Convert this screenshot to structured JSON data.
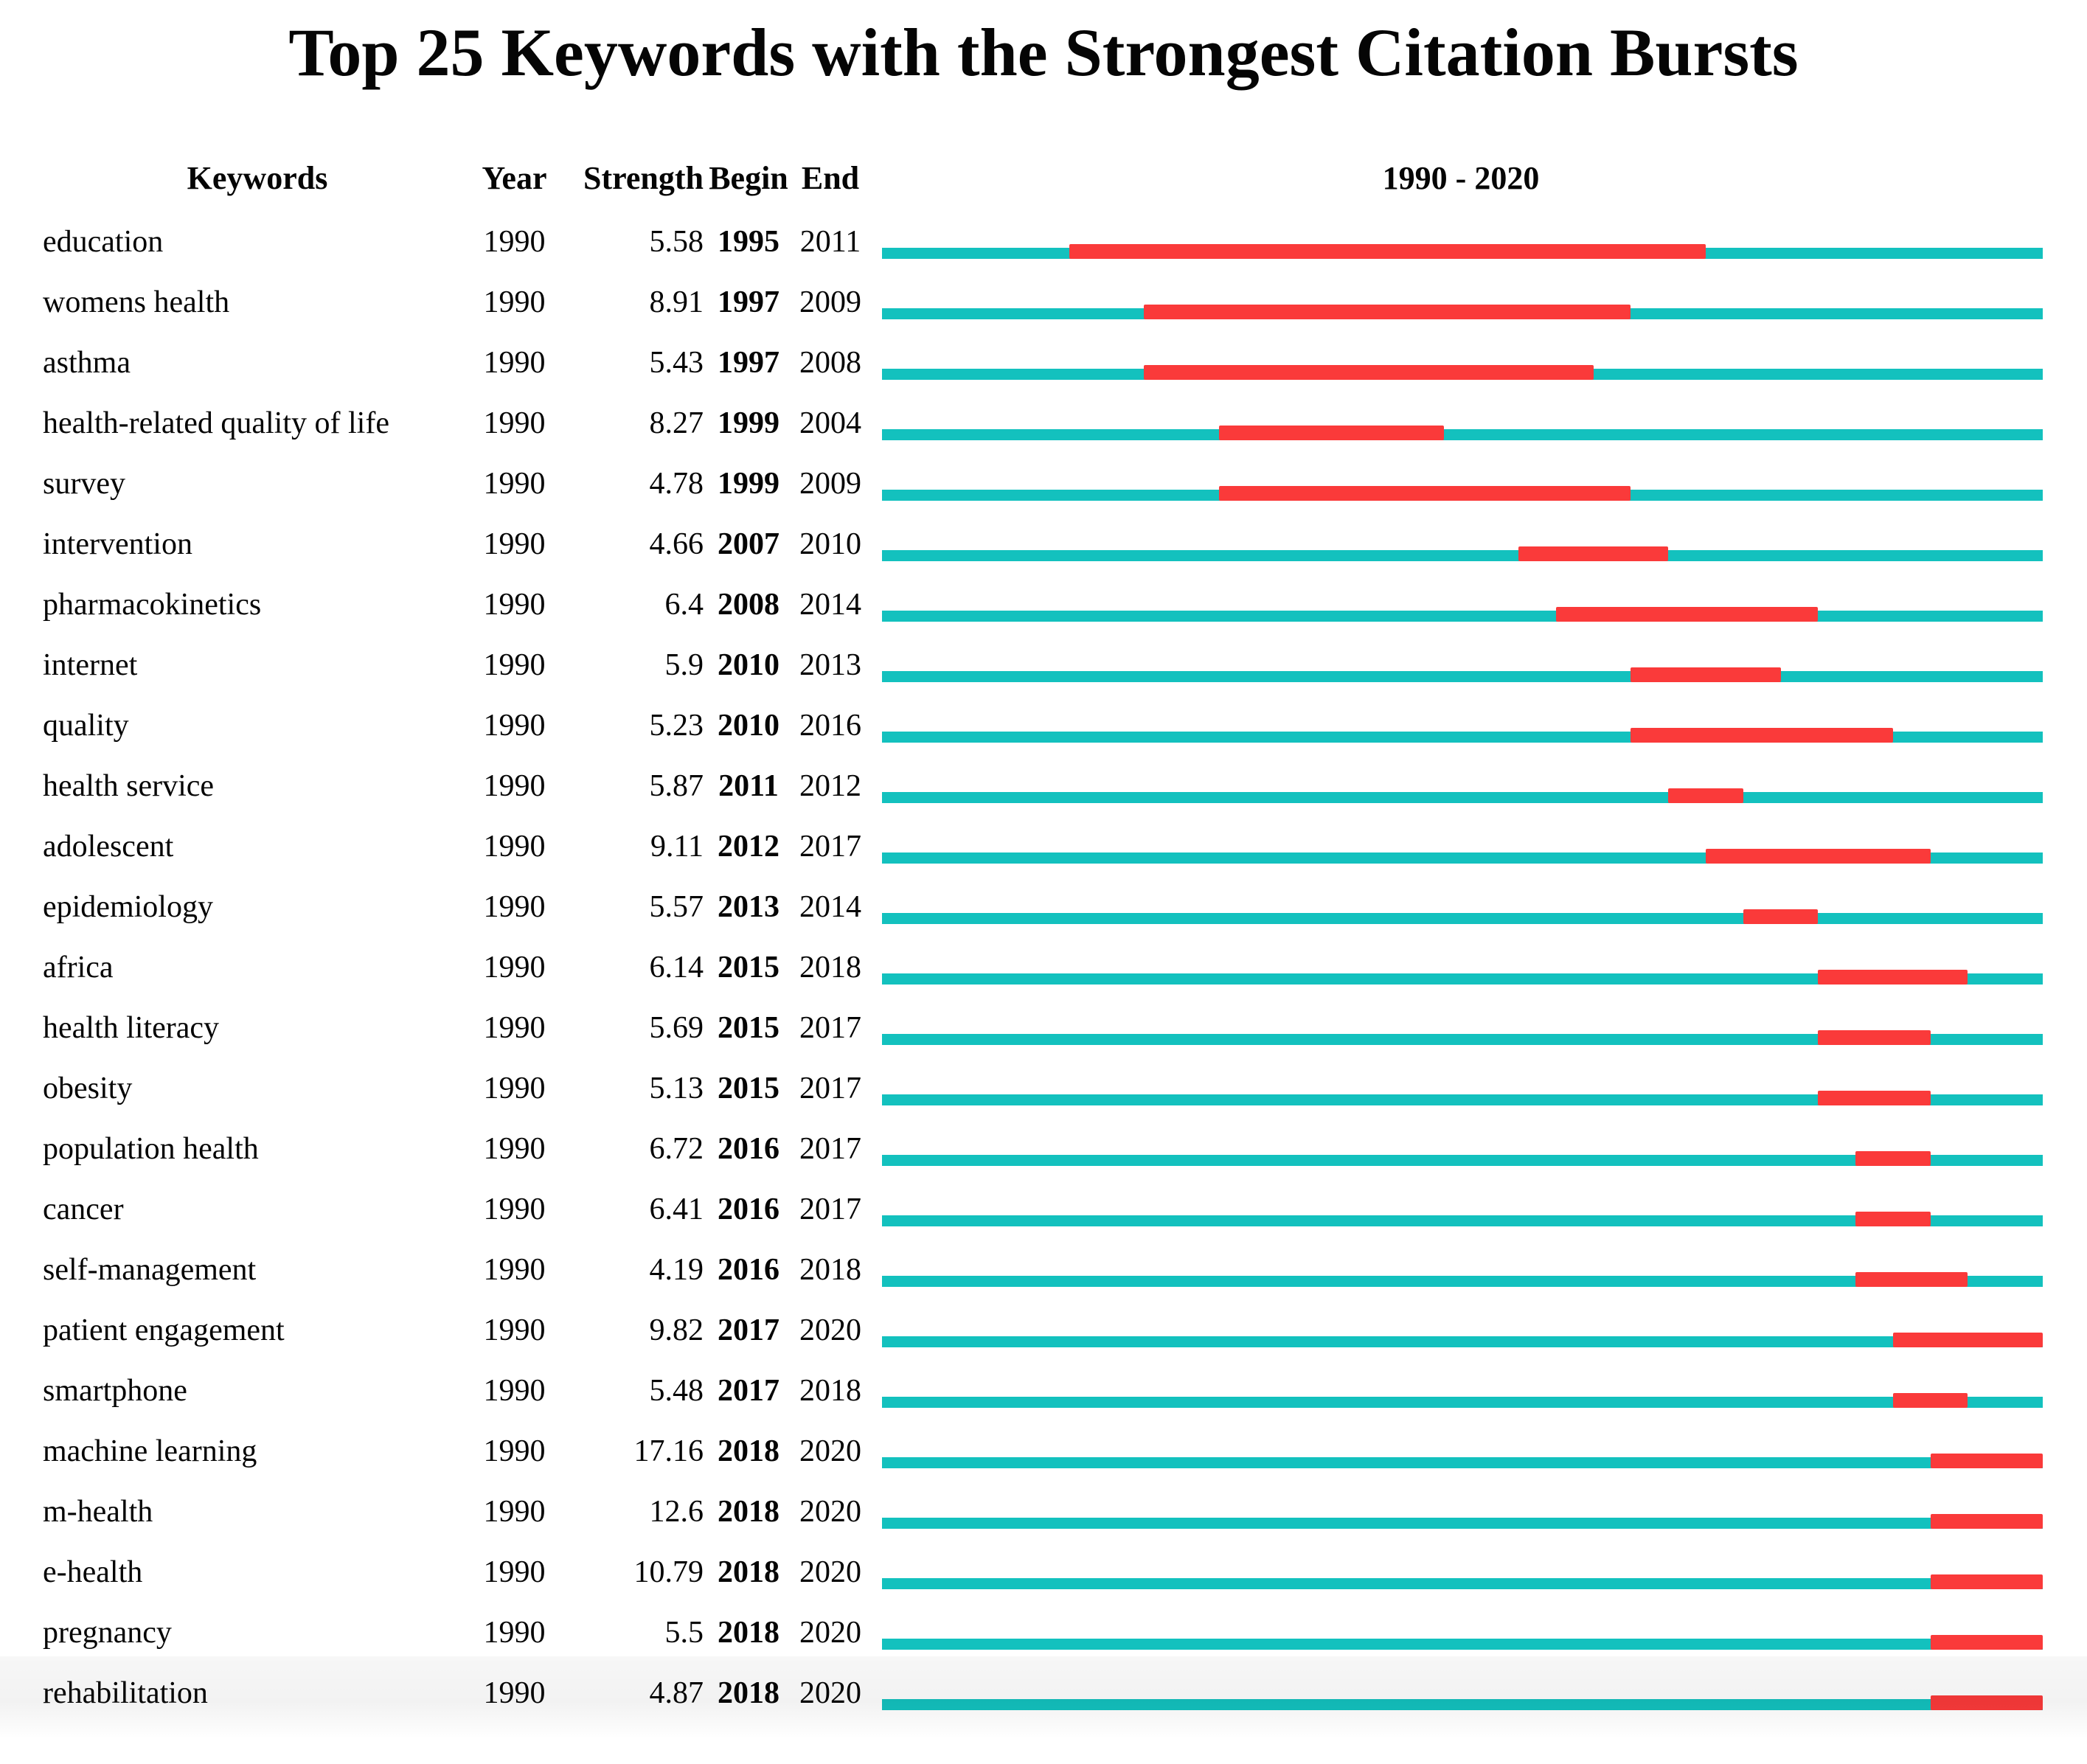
{
  "title": "Top 25 Keywords with the Strongest Citation Bursts",
  "header": {
    "keywords": "Keywords",
    "year": "Year",
    "strength": "Strength",
    "begin": "Begin",
    "end": "End",
    "range": "1990 - 2020"
  },
  "colors": {
    "timeline_base": "#13c1be",
    "burst_segment": "#fa3a3a",
    "text": "#050505",
    "background": "#ffffff"
  },
  "chart_data": {
    "type": "bar",
    "variant": "horizontal-citation-burst-timeline",
    "title": "Top 25 Keywords with the Strongest Citation Bursts",
    "axis": {
      "start": 1990,
      "end": 2020,
      "header_label": "1990 - 2020"
    },
    "legend_position": "none",
    "grid": false,
    "rows": [
      {
        "keyword": "education",
        "year": 1990,
        "strength": "5.58",
        "begin": 1995,
        "end": 2011
      },
      {
        "keyword": "womens health",
        "year": 1990,
        "strength": "8.91",
        "begin": 1997,
        "end": 2009
      },
      {
        "keyword": "asthma",
        "year": 1990,
        "strength": "5.43",
        "begin": 1997,
        "end": 2008
      },
      {
        "keyword": "health-related quality of life",
        "year": 1990,
        "strength": "8.27",
        "begin": 1999,
        "end": 2004
      },
      {
        "keyword": "survey",
        "year": 1990,
        "strength": "4.78",
        "begin": 1999,
        "end": 2009
      },
      {
        "keyword": "intervention",
        "year": 1990,
        "strength": "4.66",
        "begin": 2007,
        "end": 2010
      },
      {
        "keyword": "pharmacokinetics",
        "year": 1990,
        "strength": "6.4",
        "begin": 2008,
        "end": 2014
      },
      {
        "keyword": "internet",
        "year": 1990,
        "strength": "5.9",
        "begin": 2010,
        "end": 2013
      },
      {
        "keyword": "quality",
        "year": 1990,
        "strength": "5.23",
        "begin": 2010,
        "end": 2016
      },
      {
        "keyword": "health service",
        "year": 1990,
        "strength": "5.87",
        "begin": 2011,
        "end": 2012
      },
      {
        "keyword": "adolescent",
        "year": 1990,
        "strength": "9.11",
        "begin": 2012,
        "end": 2017
      },
      {
        "keyword": "epidemiology",
        "year": 1990,
        "strength": "5.57",
        "begin": 2013,
        "end": 2014
      },
      {
        "keyword": "africa",
        "year": 1990,
        "strength": "6.14",
        "begin": 2015,
        "end": 2018
      },
      {
        "keyword": "health literacy",
        "year": 1990,
        "strength": "5.69",
        "begin": 2015,
        "end": 2017
      },
      {
        "keyword": "obesity",
        "year": 1990,
        "strength": "5.13",
        "begin": 2015,
        "end": 2017
      },
      {
        "keyword": "population health",
        "year": 1990,
        "strength": "6.72",
        "begin": 2016,
        "end": 2017
      },
      {
        "keyword": "cancer",
        "year": 1990,
        "strength": "6.41",
        "begin": 2016,
        "end": 2017
      },
      {
        "keyword": "self-management",
        "year": 1990,
        "strength": "4.19",
        "begin": 2016,
        "end": 2018
      },
      {
        "keyword": "patient engagement",
        "year": 1990,
        "strength": "9.82",
        "begin": 2017,
        "end": 2020
      },
      {
        "keyword": "smartphone",
        "year": 1990,
        "strength": "5.48",
        "begin": 2017,
        "end": 2018
      },
      {
        "keyword": "machine learning",
        "year": 1990,
        "strength": "17.16",
        "begin": 2018,
        "end": 2020
      },
      {
        "keyword": "m-health",
        "year": 1990,
        "strength": "12.6",
        "begin": 2018,
        "end": 2020
      },
      {
        "keyword": "e-health",
        "year": 1990,
        "strength": "10.79",
        "begin": 2018,
        "end": 2020
      },
      {
        "keyword": "pregnancy",
        "year": 1990,
        "strength": "5.5",
        "begin": 2018,
        "end": 2020
      },
      {
        "keyword": "rehabilitation",
        "year": 1990,
        "strength": "4.87",
        "begin": 2018,
        "end": 2020
      }
    ]
  }
}
